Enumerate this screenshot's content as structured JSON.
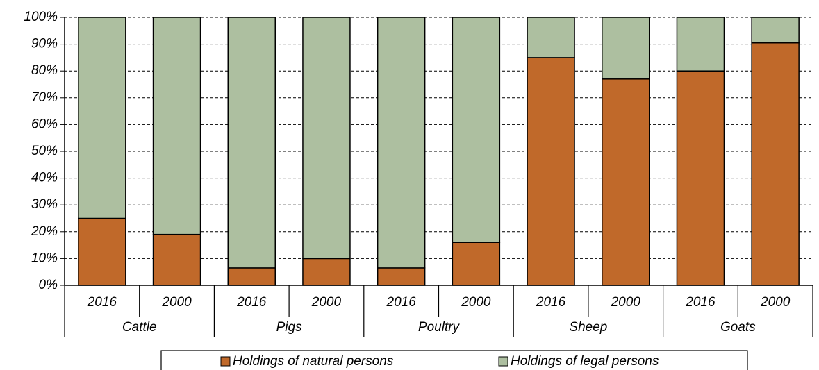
{
  "chart_data": {
    "type": "stacked_bar",
    "categories": [
      "2016",
      "2000",
      "2016",
      "2000",
      "2016",
      "2000",
      "2016",
      "2000",
      "2016",
      "2000"
    ],
    "groups": [
      "Cattle",
      "Pigs",
      "Poultry",
      "Sheep",
      "Goats"
    ],
    "series": [
      {
        "name": "Holdings of natural persons",
        "color": "#c0692a",
        "values": [
          25,
          19,
          6.5,
          10,
          6.5,
          16,
          85,
          77,
          80,
          90.5
        ]
      },
      {
        "name": "Holdings of legal persons",
        "color": "#adbfa0",
        "values": [
          75,
          81,
          93.5,
          90,
          93.5,
          84,
          15,
          23,
          20,
          9.5
        ]
      }
    ],
    "ylim": [
      0,
      100
    ],
    "yticks": [
      {
        "value": 0,
        "label": "0%"
      },
      {
        "value": 10,
        "label": "10%"
      },
      {
        "value": 20,
        "label": "20%"
      },
      {
        "value": 30,
        "label": "30%"
      },
      {
        "value": 40,
        "label": "40%"
      },
      {
        "value": 50,
        "label": "50%"
      },
      {
        "value": 60,
        "label": "60%"
      },
      {
        "value": 70,
        "label": "70%"
      },
      {
        "value": 80,
        "label": "80%"
      },
      {
        "value": 90,
        "label": "90%"
      },
      {
        "value": 100,
        "label": "100%"
      }
    ],
    "grid": true
  }
}
